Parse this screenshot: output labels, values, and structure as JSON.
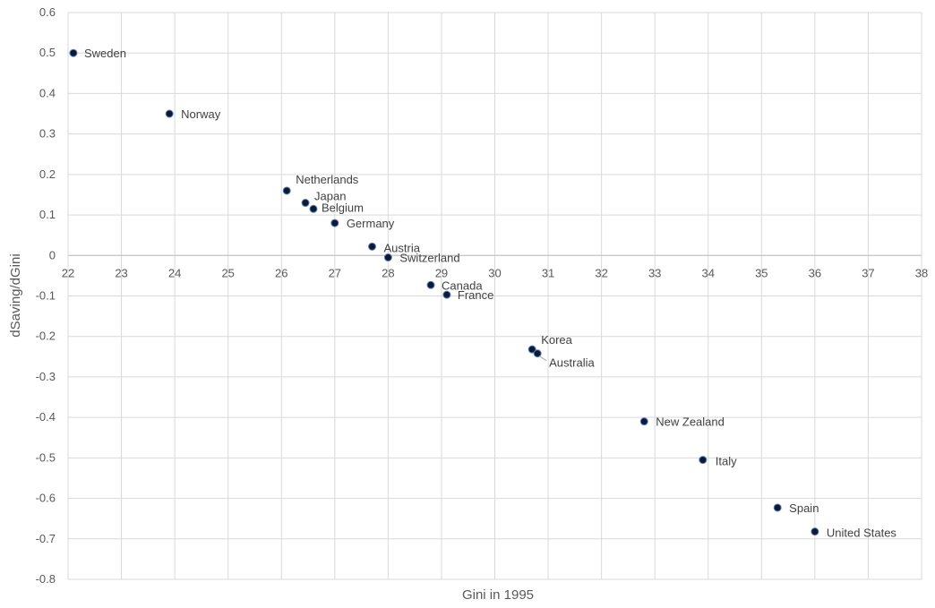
{
  "chart_data": {
    "type": "scatter",
    "title": "",
    "xlabel": "Gini in 1995",
    "ylabel": "dSaving/dGini",
    "xlim": [
      22,
      38
    ],
    "ylim": [
      -0.8,
      0.6
    ],
    "x_ticks": [
      22,
      23,
      24,
      25,
      26,
      27,
      28,
      29,
      30,
      31,
      32,
      33,
      34,
      35,
      36,
      37,
      38
    ],
    "y_ticks": [
      0.6,
      0.5,
      0.4,
      0.3,
      0.2,
      0.1,
      0,
      -0.1,
      -0.2,
      -0.3,
      -0.4,
      -0.5,
      -0.6,
      -0.7,
      -0.8
    ],
    "grid": true,
    "legend": "none",
    "marker_color": "#0d1a33",
    "marker_edge_color": "#5b7fbf",
    "points": [
      {
        "label": "Sweden",
        "x": 22.1,
        "y": 0.5
      },
      {
        "label": "Norway",
        "x": 23.9,
        "y": 0.35
      },
      {
        "label": "Netherlands",
        "x": 26.1,
        "y": 0.16
      },
      {
        "label": "Japan",
        "x": 26.45,
        "y": 0.13
      },
      {
        "label": "Belgium",
        "x": 26.6,
        "y": 0.115
      },
      {
        "label": "Germany",
        "x": 27.0,
        "y": 0.08
      },
      {
        "label": "Austria",
        "x": 27.7,
        "y": 0.022
      },
      {
        "label": "Switzerland",
        "x": 28.0,
        "y": -0.005
      },
      {
        "label": "Canada",
        "x": 28.8,
        "y": -0.073
      },
      {
        "label": "France",
        "x": 29.1,
        "y": -0.097
      },
      {
        "label": "Korea",
        "x": 30.7,
        "y": -0.232
      },
      {
        "label": "Australia",
        "x": 30.8,
        "y": -0.242
      },
      {
        "label": "New Zealand",
        "x": 32.8,
        "y": -0.41
      },
      {
        "label": "Italy",
        "x": 33.9,
        "y": -0.505
      },
      {
        "label": "Spain",
        "x": 35.3,
        "y": -0.623
      },
      {
        "label": "United States",
        "x": 36.0,
        "y": -0.682
      }
    ]
  }
}
